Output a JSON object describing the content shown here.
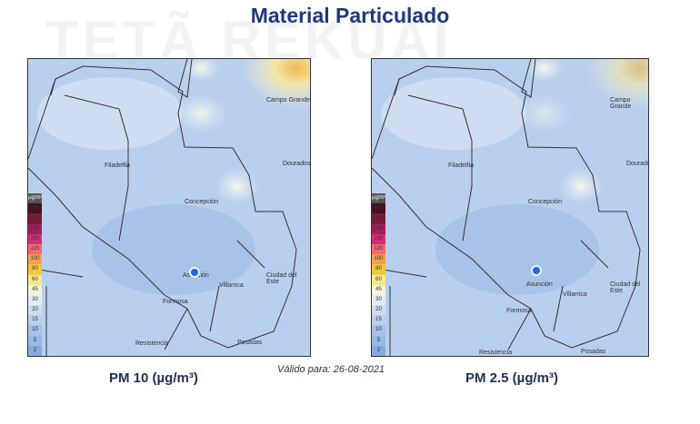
{
  "title": "Material Particulado",
  "watermark": "TETÃ REKUÁI",
  "legend": {
    "unit": "µg/m³",
    "values": [
      "500",
      "300",
      "200",
      "150",
      "120",
      "100",
      "80",
      "60",
      "45",
      "30",
      "20",
      "15",
      "10",
      "5",
      "2"
    ],
    "colors": [
      "#4a1020",
      "#7a1a3a",
      "#a0205a",
      "#d0307a",
      "#f06a70",
      "#f5a050",
      "#f0c840",
      "#f5e890",
      "#f8f6d8",
      "#e4ecf6",
      "#cfdcef",
      "#bcd0ec",
      "#a9c3e8",
      "#97b7e5",
      "#84aae0"
    ]
  },
  "cities": [
    "Campo Grande",
    "Filadelfia",
    "Dourados",
    "Concepción",
    "Asunción",
    "Ciudad del Este",
    "Villarrica",
    "Formosa",
    "Resistencia",
    "Posadas"
  ],
  "maps": [
    {
      "caption": "PM 10 (µg/m³)"
    },
    {
      "caption": "PM 2.5 (µg/m³)"
    }
  ],
  "valid": "Válido para: 26-08-2021"
}
